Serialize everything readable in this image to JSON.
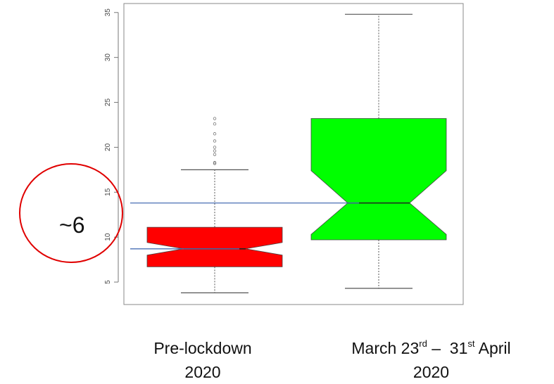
{
  "chart_data": {
    "type": "box",
    "notched": true,
    "title": "",
    "xlabel": "",
    "ylabel": "",
    "ylim": [
      2.5,
      36
    ],
    "y_ticks": [
      5,
      10,
      15,
      20,
      25,
      30,
      35
    ],
    "y_tick_labels": [
      "5",
      "10",
      "15",
      "20",
      "25",
      "30",
      "35"
    ],
    "grid": false,
    "series": [
      {
        "category_lines": [
          "Pre-lockdown",
          "2020"
        ],
        "color": "#ff0000",
        "whisker_low": 3.8,
        "q1": 6.7,
        "median": 8.7,
        "q3": 11.1,
        "whisker_high": 17.5,
        "notch_low": 8.0,
        "notch_high": 9.4,
        "outliers": [
          18.2,
          18.3,
          19.2,
          19.6,
          20.0,
          20.7,
          21.5,
          22.6,
          23.2
        ]
      },
      {
        "category_lines": [
          "March 23",
          "rd",
          " –  31",
          "st",
          " April",
          "2020"
        ],
        "color": "#00ff00",
        "whisker_low": 4.3,
        "q1": 9.7,
        "median": 13.8,
        "q3": 23.2,
        "whisker_high": 34.8,
        "notch_low": 10.3,
        "notch_high": 17.4,
        "outliers": []
      }
    ],
    "reference_lines": [
      {
        "value": 13.8,
        "color": "#4a6fb5"
      },
      {
        "value": 8.7,
        "color": "#4a6fb5"
      }
    ],
    "annotation": {
      "text": "~6",
      "shape": "ellipse",
      "color": "#e00000"
    }
  }
}
